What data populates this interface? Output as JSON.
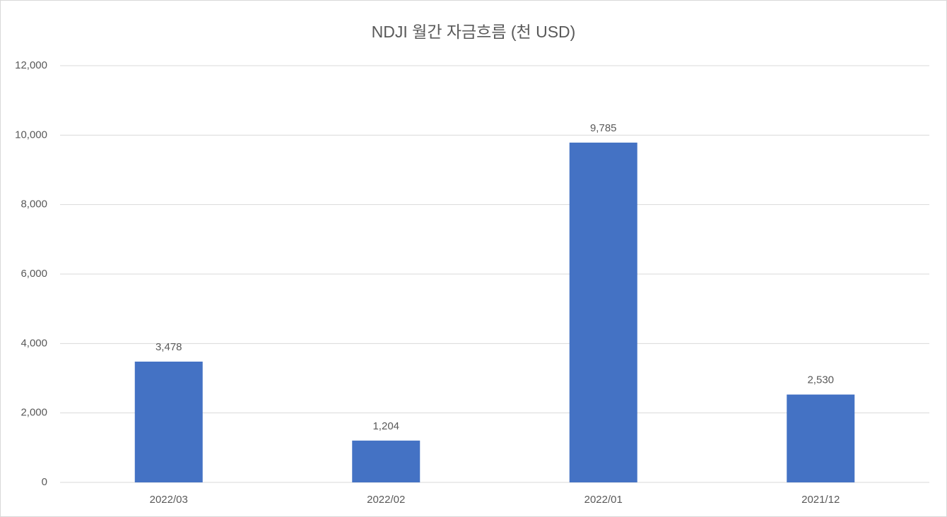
{
  "chart_data": {
    "type": "bar",
    "title": "NDJI 월간 자금흐름 (천 USD)",
    "categories": [
      "2022/03",
      "2022/02",
      "2022/01",
      "2021/12"
    ],
    "values": [
      3478,
      1204,
      9785,
      2530
    ],
    "value_labels": [
      "3,478",
      "1,204",
      "9,785",
      "2,530"
    ],
    "color": "#4472c4",
    "ylim": [
      0,
      12000
    ],
    "yticks": [
      0,
      {
        "value": 2000,
        "label": "2,000"
      },
      {
        "value": 4000,
        "label": "4,000"
      },
      {
        "value": 6000,
        "label": "6,000"
      },
      {
        "value": 8000,
        "label": "8,000"
      },
      {
        "value": 10000,
        "label": "10,000"
      },
      {
        "value": 12000,
        "label": "12,000"
      }
    ],
    "grid": true
  }
}
